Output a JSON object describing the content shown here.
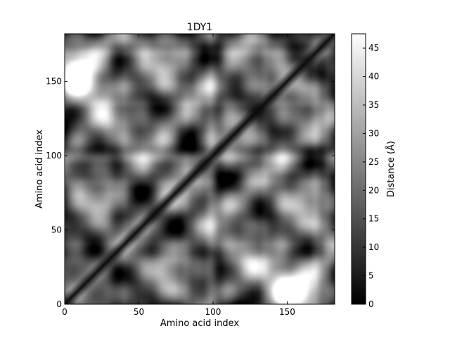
{
  "chart_data": {
    "type": "heatmap",
    "title": "1DY1",
    "xlabel": "Amino acid index",
    "ylabel": "Amino acid index",
    "xlim": [
      0,
      182
    ],
    "ylim": [
      0,
      182
    ],
    "x_ticks": [
      0,
      50,
      100,
      150
    ],
    "y_ticks": [
      0,
      50,
      100,
      150
    ],
    "colormap": "gray",
    "colorbar": {
      "label": "Distance (Å)",
      "range": [
        0,
        47.5
      ],
      "ticks": [
        0,
        5,
        10,
        15,
        20,
        25,
        30,
        35,
        40,
        45
      ]
    },
    "matrix_size": 182,
    "description_of_values": "Pairwise Cα distance matrix; zero along the diagonal, values up to ~47 Å",
    "blobs": [
      {
        "x": 8,
        "y": 150,
        "distance": 46
      },
      {
        "x": 12,
        "y": 165,
        "distance": 44
      },
      {
        "x": 148,
        "y": 10,
        "distance": 47
      },
      {
        "x": 165,
        "y": 8,
        "distance": 44
      },
      {
        "x": 130,
        "y": 25,
        "distance": 38
      },
      {
        "x": 70,
        "y": 118,
        "distance": 36
      },
      {
        "x": 100,
        "y": 105,
        "distance": 30
      },
      {
        "x": 55,
        "y": 160,
        "distance": 36
      },
      {
        "x": 150,
        "y": 110,
        "distance": 34
      },
      {
        "x": 35,
        "y": 80,
        "distance": 30
      },
      {
        "x": 120,
        "y": 140,
        "distance": 28
      },
      {
        "x": 95,
        "y": 45,
        "distance": 32
      }
    ]
  }
}
